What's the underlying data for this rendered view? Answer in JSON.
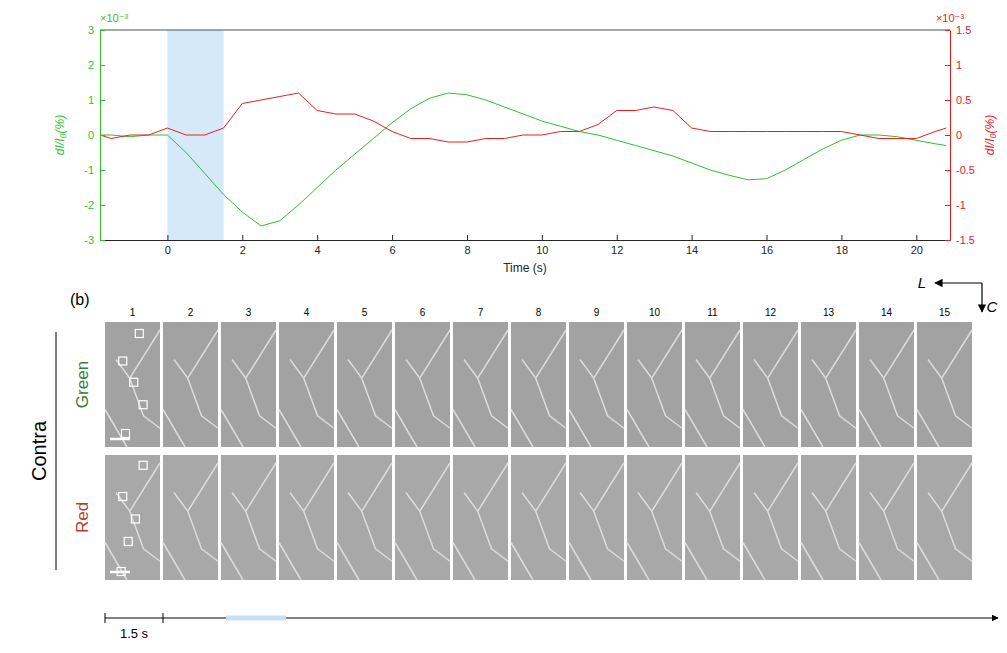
{
  "chart_data": {
    "type": "line",
    "x_label": "Time (s)",
    "y_label": "dI/I₀(%)",
    "y2_label": "dI/I₀(%)",
    "y_scale_label": "×10⁻³",
    "y2_scale_label": "×10⁻³",
    "xlim": [
      -1.8,
      20.9
    ],
    "xticks": [
      0,
      2,
      4,
      6,
      8,
      10,
      12,
      14,
      16,
      18,
      20
    ],
    "ylim": [
      -3,
      3
    ],
    "yticks": [
      -3,
      -2,
      -1,
      0,
      1,
      2,
      3
    ],
    "y2lim": [
      -1.5,
      1.5
    ],
    "y2ticks": [
      -1.5,
      -1,
      -0.5,
      0,
      0.5,
      1,
      1.5
    ],
    "shaded_region": [
      0,
      1.5
    ],
    "x": [
      -1.8,
      -1.5,
      -1,
      -0.5,
      0,
      0.5,
      1,
      1.5,
      2,
      2.5,
      3,
      3.5,
      4,
      4.5,
      5,
      5.5,
      6,
      6.5,
      7,
      7.5,
      8,
      8.5,
      9,
      9.5,
      10,
      10.5,
      11,
      11.5,
      12,
      12.5,
      13,
      13.5,
      14,
      14.5,
      15,
      15.5,
      16,
      16.5,
      17,
      17.5,
      18,
      18.5,
      19,
      19.5,
      20,
      20.5,
      20.8
    ],
    "series": [
      {
        "name": "Green",
        "color": "#2fbf2f",
        "axis": "y",
        "values": [
          0.0,
          0.0,
          -0.05,
          0.0,
          0.0,
          -0.5,
          -1.1,
          -1.7,
          -2.2,
          -2.6,
          -2.45,
          -2.0,
          -1.5,
          -1.0,
          -0.55,
          -0.1,
          0.35,
          0.75,
          1.05,
          1.2,
          1.15,
          1.0,
          0.8,
          0.6,
          0.4,
          0.25,
          0.1,
          0.0,
          -0.15,
          -0.3,
          -0.45,
          -0.6,
          -0.8,
          -1.0,
          -1.15,
          -1.28,
          -1.25,
          -1.0,
          -0.7,
          -0.4,
          -0.15,
          0.0,
          0.0,
          -0.05,
          -0.15,
          -0.25,
          -0.3
        ]
      },
      {
        "name": "Red",
        "color": "#e8201c",
        "axis": "y2",
        "values": [
          0.0,
          -0.05,
          0.0,
          0.0,
          0.1,
          0.0,
          0.0,
          0.1,
          0.45,
          0.5,
          0.55,
          0.6,
          0.35,
          0.3,
          0.3,
          0.2,
          0.05,
          -0.05,
          -0.05,
          -0.1,
          -0.1,
          -0.05,
          -0.05,
          0.0,
          0.0,
          0.05,
          0.05,
          0.15,
          0.35,
          0.35,
          0.4,
          0.35,
          0.1,
          0.05,
          0.05,
          0.05,
          0.05,
          0.05,
          0.05,
          0.05,
          0.05,
          0.0,
          -0.05,
          -0.05,
          -0.05,
          0.05,
          0.1
        ]
      }
    ]
  },
  "panel_b": {
    "label": "(b)",
    "group": "Contra",
    "rows": [
      {
        "name": "Green",
        "color": "#3a7d3a"
      },
      {
        "name": "Red",
        "color": "#c0392b"
      }
    ],
    "frames": [
      1,
      2,
      3,
      4,
      5,
      6,
      7,
      8,
      9,
      10,
      11,
      12,
      13,
      14,
      15
    ],
    "directions": {
      "horizontal": "L",
      "vertical": "C"
    },
    "time_scale": "1.5 s"
  }
}
